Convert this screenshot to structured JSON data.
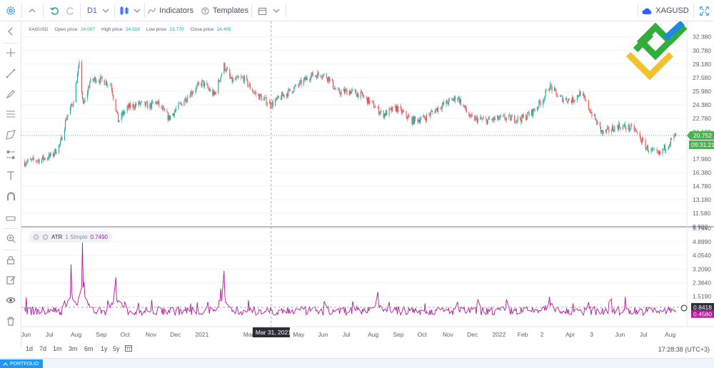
{
  "toolbar": {
    "interval": "D1",
    "indicators_label": "Indicators",
    "templates_label": "Templates",
    "symbol": "XAGUSD"
  },
  "legend": {
    "symbol": "XAGUSD",
    "open_label": "Open price:",
    "open_value": "24.007",
    "high_label": "High price:",
    "high_value": "24.519",
    "low_label": "Low price:",
    "low_value": "23.770",
    "close_label": "Close price:",
    "close_value": "24.405"
  },
  "price_axis": {
    "ticks": [
      "32.380",
      "30.780",
      "29.180",
      "27.580",
      "25.980",
      "24.380",
      "22.780",
      "21.180",
      "17.980",
      "16.380",
      "14.780",
      "13.180",
      "11.580",
      "9.980"
    ],
    "last_price": "20.752",
    "countdown": "09:31:21"
  },
  "atr_panel": {
    "name": "ATR",
    "params": "1 Simple",
    "value": "0.7490",
    "ticks": [
      "5.7440",
      "4.8990",
      "4.0540",
      "3.2090",
      "2.3640",
      "1.5190",
      "0.6740"
    ],
    "marker_upper": "0.8418",
    "marker_lower": "0.4580"
  },
  "time_axis": {
    "labels": [
      "Jun",
      "Jul",
      "Aug",
      "Sep",
      "Oct",
      "Nov",
      "Dec",
      "2021",
      "Mar",
      "May",
      "Jun",
      "Jul",
      "Aug",
      "Sep",
      "Oct",
      "Nov",
      "Dec",
      "2022",
      "Feb",
      "2",
      "Apr",
      "3",
      "Jun",
      "Jul",
      "Aug"
    ],
    "crosshair_label": "Mar 31, 2021"
  },
  "bottom": {
    "ranges": [
      "1d",
      "7d",
      "1m",
      "3m",
      "6m",
      "1y",
      "5y"
    ],
    "clock": "17:28:38 (UTC+3)",
    "portfolio": "PORTFOLIO"
  },
  "colors": {
    "up": "#26a69a",
    "down": "#ef5350",
    "atr_line": "#b5179e",
    "last_price_bg": "#4caf50",
    "accent": "#2196f3"
  },
  "chart_data": {
    "type": "candlestick",
    "symbol": "XAGUSD",
    "ylim": [
      9.98,
      33.2
    ],
    "anchors": [
      [
        "2020-06-01",
        17.6
      ],
      [
        "2020-06-20",
        17.9
      ],
      [
        "2020-07-05",
        18.4
      ],
      [
        "2020-07-15",
        19.8
      ],
      [
        "2020-07-22",
        22.8
      ],
      [
        "2020-07-30",
        24.5
      ],
      [
        "2020-08-07",
        29.0
      ],
      [
        "2020-08-12",
        24.2
      ],
      [
        "2020-08-20",
        27.0
      ],
      [
        "2020-08-28",
        27.5
      ],
      [
        "2020-09-05",
        27.2
      ],
      [
        "2020-09-15",
        26.8
      ],
      [
        "2020-09-24",
        22.5
      ],
      [
        "2020-10-05",
        24.0
      ],
      [
        "2020-10-20",
        24.5
      ],
      [
        "2020-11-01",
        24.2
      ],
      [
        "2020-11-10",
        24.7
      ],
      [
        "2020-11-25",
        22.8
      ],
      [
        "2020-12-10",
        24.5
      ],
      [
        "2020-12-22",
        25.8
      ],
      [
        "2021-01-05",
        27.0
      ],
      [
        "2021-01-20",
        25.5
      ],
      [
        "2021-02-01",
        29.0
      ],
      [
        "2021-02-10",
        27.2
      ],
      [
        "2021-02-25",
        27.5
      ],
      [
        "2021-03-10",
        25.8
      ],
      [
        "2021-03-31",
        24.4
      ],
      [
        "2021-04-15",
        25.5
      ],
      [
        "2021-05-01",
        26.5
      ],
      [
        "2021-05-18",
        27.8
      ],
      [
        "2021-06-01",
        28.0
      ],
      [
        "2021-06-10",
        27.5
      ],
      [
        "2021-06-20",
        25.8
      ],
      [
        "2021-07-05",
        26.0
      ],
      [
        "2021-07-20",
        25.5
      ],
      [
        "2021-08-05",
        24.2
      ],
      [
        "2021-08-15",
        23.2
      ],
      [
        "2021-09-01",
        24.0
      ],
      [
        "2021-09-20",
        22.5
      ],
      [
        "2021-10-05",
        22.8
      ],
      [
        "2021-10-25",
        24.2
      ],
      [
        "2021-11-15",
        25.3
      ],
      [
        "2021-12-01",
        22.8
      ],
      [
        "2021-12-20",
        22.5
      ],
      [
        "2022-01-10",
        22.8
      ],
      [
        "2022-02-01",
        22.7
      ],
      [
        "2022-02-15",
        23.5
      ],
      [
        "2022-03-01",
        25.2
      ],
      [
        "2022-03-08",
        26.6
      ],
      [
        "2022-03-20",
        25.2
      ],
      [
        "2022-04-05",
        24.9
      ],
      [
        "2022-04-15",
        25.8
      ],
      [
        "2022-05-01",
        23.0
      ],
      [
        "2022-05-12",
        21.0
      ],
      [
        "2022-06-01",
        21.9
      ],
      [
        "2022-06-20",
        21.5
      ],
      [
        "2022-07-05",
        19.3
      ],
      [
        "2022-07-20",
        18.4
      ],
      [
        "2022-08-01",
        19.8
      ],
      [
        "2022-08-10",
        20.75
      ]
    ],
    "atr": {
      "name": "ATR",
      "period": 1,
      "method": "Simple",
      "current": 0.749,
      "ylim": [
        0.0,
        5.744
      ],
      "peaks": [
        [
          "2020-07-28",
          3.5
        ],
        [
          "2020-08-11",
          4.9
        ],
        [
          "2020-08-13",
          2.4
        ],
        [
          "2020-09-21",
          2.7
        ],
        [
          "2021-01-28",
          2.0
        ],
        [
          "2021-02-01",
          3.1
        ],
        [
          "2021-08-09",
          1.8
        ],
        [
          "2022-03-08",
          1.5
        ]
      ]
    },
    "time_labels": [
      "Jun",
      "Jul",
      "Aug",
      "Sep",
      "Oct",
      "Nov",
      "Dec",
      "2021",
      "Mar",
      "May",
      "Jun",
      "Jul",
      "Aug",
      "Sep",
      "Oct",
      "Nov",
      "Dec",
      "2022",
      "Feb",
      "2",
      "Apr",
      "3",
      "Jun",
      "Jul",
      "Aug"
    ]
  }
}
